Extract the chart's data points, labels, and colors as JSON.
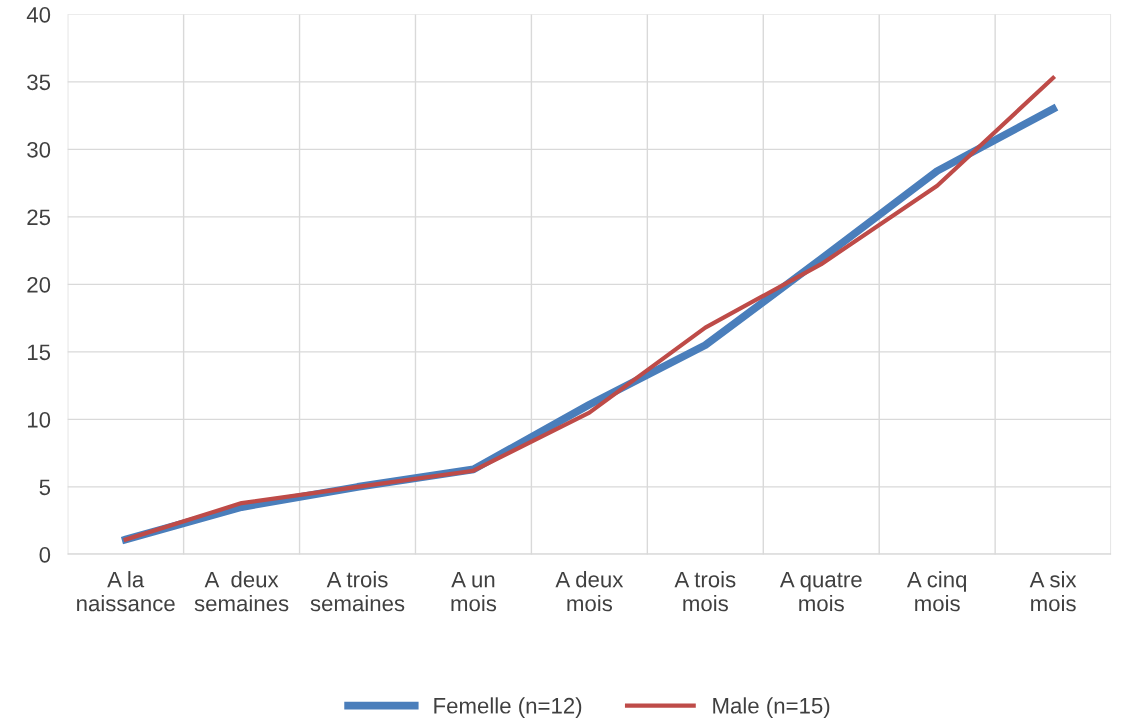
{
  "chart_data": {
    "type": "line",
    "categories": [
      "A la\nnaissance",
      "A  deux\nsemaines",
      "A trois\nsemaines",
      "A un\nmois",
      "A deux\nmois",
      "A trois\nmois",
      "A quatre\nmois",
      "A cinq\nmois",
      "A six\nmois"
    ],
    "series": [
      {
        "name": "Femelle (n=12)",
        "color": "#4a7ebb",
        "values": [
          1.1,
          3.5,
          5.0,
          6.3,
          11.1,
          15.5,
          21.9,
          28.4,
          33.0
        ]
      },
      {
        "name": "Male (n=15)",
        "color": "#be4b48",
        "values": [
          1.1,
          3.8,
          5.0,
          6.2,
          10.5,
          16.8,
          21.5,
          27.3,
          35.3
        ]
      }
    ],
    "ylim": [
      0,
      40
    ],
    "yticks": [
      0,
      5,
      10,
      15,
      20,
      25,
      30,
      35,
      40
    ],
    "grid": true,
    "legend": "bottom",
    "marker": "none",
    "line_style": "solid"
  }
}
